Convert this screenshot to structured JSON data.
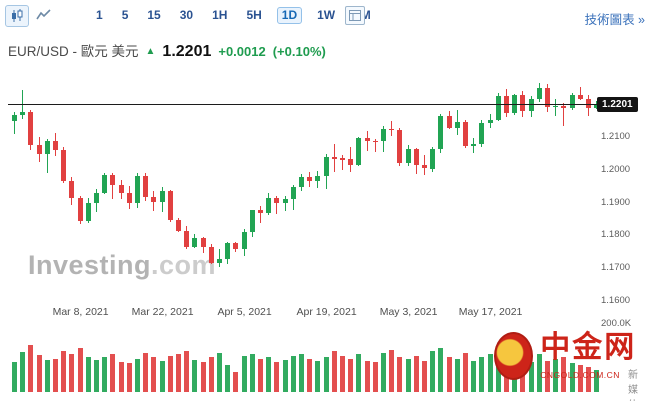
{
  "toolbar": {
    "chart_type_icons": [
      "candlestick-icon",
      "line-chart-icon"
    ],
    "timeframes": [
      {
        "label": "1"
      },
      {
        "label": "5"
      },
      {
        "label": "15"
      },
      {
        "label": "30"
      },
      {
        "label": "1H"
      },
      {
        "label": "5H"
      },
      {
        "label": "1D",
        "active": true
      },
      {
        "label": "1W"
      },
      {
        "label": "1M"
      }
    ],
    "advanced_icon": "advanced-chart-icon",
    "tech_chart_link": "技術圖表 »"
  },
  "header": {
    "title": "EUR/USD - 歐元 美元",
    "direction": "up",
    "price": "1.2201",
    "change": "+0.0012",
    "change_percent": "(+0.10%)",
    "positive_color": "#1f9c4f"
  },
  "watermark": {
    "brand": "Investing",
    "suffix": ".com"
  },
  "cn_logo": {
    "name": "中金网",
    "domain": "CNGOLD.COM.CN",
    "tagline": "新 媒 体"
  },
  "chart_data": {
    "type": "candlestick",
    "symbol": "EUR/USD",
    "interval": "1D",
    "ylim": [
      1.16,
      1.228
    ],
    "y_ticks": [
      1.21,
      1.2,
      1.19,
      1.18,
      1.17,
      1.16
    ],
    "x_ticks": [
      {
        "label": "Mar 8, 2021",
        "index": 8
      },
      {
        "label": "Mar 22, 2021",
        "index": 18
      },
      {
        "label": "Apr 5, 2021",
        "index": 28
      },
      {
        "label": "Apr 19, 2021",
        "index": 38
      },
      {
        "label": "May 3, 2021",
        "index": 48
      },
      {
        "label": "May 17, 2021",
        "index": 58
      }
    ],
    "current_price": 1.2201,
    "current_price_label": "1.2201",
    "up_color": "#21a453",
    "down_color": "#e14040",
    "candles_ohlc": [
      [
        1.215,
        1.2175,
        1.2108,
        1.2168
      ],
      [
        1.2168,
        1.2243,
        1.2155,
        1.2176
      ],
      [
        1.2176,
        1.2183,
        1.2061,
        1.2075
      ],
      [
        1.2075,
        1.2101,
        1.2025,
        1.2047
      ],
      [
        1.2047,
        1.2094,
        1.1991,
        1.2089
      ],
      [
        1.2089,
        1.2113,
        1.2043,
        1.206
      ],
      [
        1.206,
        1.2069,
        1.196,
        1.1966
      ],
      [
        1.1966,
        1.1978,
        1.1892,
        1.1915
      ],
      [
        1.1915,
        1.192,
        1.1836,
        1.1845
      ],
      [
        1.1845,
        1.1915,
        1.1838,
        1.19
      ],
      [
        1.19,
        1.1941,
        1.187,
        1.1928
      ],
      [
        1.1928,
        1.199,
        1.1925,
        1.1985
      ],
      [
        1.1985,
        1.1989,
        1.191,
        1.1955
      ],
      [
        1.1955,
        1.1968,
        1.1911,
        1.1929
      ],
      [
        1.1929,
        1.195,
        1.1882,
        1.19
      ],
      [
        1.19,
        1.1989,
        1.1885,
        1.198
      ],
      [
        1.198,
        1.1989,
        1.1906,
        1.1917
      ],
      [
        1.1917,
        1.1936,
        1.1874,
        1.1903
      ],
      [
        1.1903,
        1.1947,
        1.187,
        1.1934
      ],
      [
        1.1934,
        1.194,
        1.1842,
        1.1848
      ],
      [
        1.1848,
        1.1854,
        1.1809,
        1.1813
      ],
      [
        1.1813,
        1.1829,
        1.176,
        1.1765
      ],
      [
        1.1765,
        1.1805,
        1.1762,
        1.1793
      ],
      [
        1.1793,
        1.1796,
        1.1745,
        1.1764
      ],
      [
        1.1764,
        1.1774,
        1.1712,
        1.1717
      ],
      [
        1.1717,
        1.176,
        1.1704,
        1.1729
      ],
      [
        1.1729,
        1.1781,
        1.1713,
        1.1777
      ],
      [
        1.1777,
        1.178,
        1.1749,
        1.176
      ],
      [
        1.176,
        1.1821,
        1.1738,
        1.1811
      ],
      [
        1.1811,
        1.1878,
        1.1795,
        1.1876
      ],
      [
        1.1876,
        1.1891,
        1.1837,
        1.1867
      ],
      [
        1.1867,
        1.1928,
        1.1861,
        1.1915
      ],
      [
        1.1915,
        1.1921,
        1.1866,
        1.1899
      ],
      [
        1.1899,
        1.192,
        1.1873,
        1.191
      ],
      [
        1.191,
        1.1955,
        1.1878,
        1.1948
      ],
      [
        1.1948,
        1.1988,
        1.1935,
        1.1979
      ],
      [
        1.1979,
        1.1994,
        1.1947,
        1.1966
      ],
      [
        1.1966,
        1.1995,
        1.1944,
        1.1982
      ],
      [
        1.1982,
        1.2048,
        1.1942,
        1.2038
      ],
      [
        1.2038,
        1.208,
        1.1994,
        1.2035
      ],
      [
        1.2035,
        1.2044,
        1.1998,
        1.2033
      ],
      [
        1.2033,
        1.207,
        1.1993,
        1.2015
      ],
      [
        1.2015,
        1.21,
        1.2012,
        1.2097
      ],
      [
        1.2097,
        1.2117,
        1.2056,
        1.2089
      ],
      [
        1.2089,
        1.2094,
        1.2055,
        1.2088
      ],
      [
        1.2088,
        1.2134,
        1.2054,
        1.2126
      ],
      [
        1.2126,
        1.215,
        1.2103,
        1.2122
      ],
      [
        1.2122,
        1.2128,
        1.2013,
        1.202
      ],
      [
        1.202,
        1.2076,
        1.2013,
        1.2063
      ],
      [
        1.2063,
        1.2067,
        1.1986,
        1.2014
      ],
      [
        1.2014,
        1.2046,
        1.1985,
        1.2004
      ],
      [
        1.2004,
        1.2071,
        1.1993,
        1.2064
      ],
      [
        1.2064,
        1.2171,
        1.2051,
        1.2164
      ],
      [
        1.2164,
        1.2179,
        1.2123,
        1.2129
      ],
      [
        1.2129,
        1.2182,
        1.2107,
        1.2147
      ],
      [
        1.2147,
        1.2153,
        1.2065,
        1.2072
      ],
      [
        1.2072,
        1.2098,
        1.2051,
        1.2079
      ],
      [
        1.2079,
        1.2151,
        1.207,
        1.2143
      ],
      [
        1.2143,
        1.2169,
        1.2127,
        1.2153
      ],
      [
        1.2153,
        1.2233,
        1.2149,
        1.2225
      ],
      [
        1.2225,
        1.2245,
        1.216,
        1.2174
      ],
      [
        1.2174,
        1.223,
        1.2168,
        1.2228
      ],
      [
        1.2228,
        1.224,
        1.2161,
        1.218
      ],
      [
        1.218,
        1.2224,
        1.216,
        1.2215
      ],
      [
        1.2215,
        1.2266,
        1.2208,
        1.225
      ],
      [
        1.225,
        1.2262,
        1.2177,
        1.2193
      ],
      [
        1.2193,
        1.2215,
        1.2163,
        1.2195
      ],
      [
        1.2195,
        1.2205,
        1.2133,
        1.2189
      ],
      [
        1.2189,
        1.2233,
        1.2181,
        1.2227
      ],
      [
        1.2227,
        1.2254,
        1.2212,
        1.2216
      ],
      [
        1.2216,
        1.2227,
        1.2163,
        1.2189
      ],
      [
        1.2189,
        1.2209,
        1.2184,
        1.2201
      ]
    ],
    "volumes_k": [
      96,
      128,
      152,
      118,
      102,
      108,
      132,
      124,
      142,
      114,
      104,
      112,
      122,
      98,
      95,
      106,
      126,
      112,
      100,
      116,
      122,
      132,
      104,
      96,
      112,
      126,
      88,
      64,
      116,
      122,
      106,
      112,
      96,
      102,
      116,
      122,
      106,
      100,
      112,
      132,
      116,
      106,
      122,
      100,
      96,
      126,
      136,
      112,
      106,
      116,
      100,
      132,
      142,
      112,
      106,
      126,
      100,
      112,
      122,
      146,
      116,
      106,
      112,
      96,
      122,
      100,
      106,
      112,
      92,
      86,
      82,
      70
    ],
    "volume_axis_max_k": 200,
    "volume_axis_label": "200.0K"
  }
}
